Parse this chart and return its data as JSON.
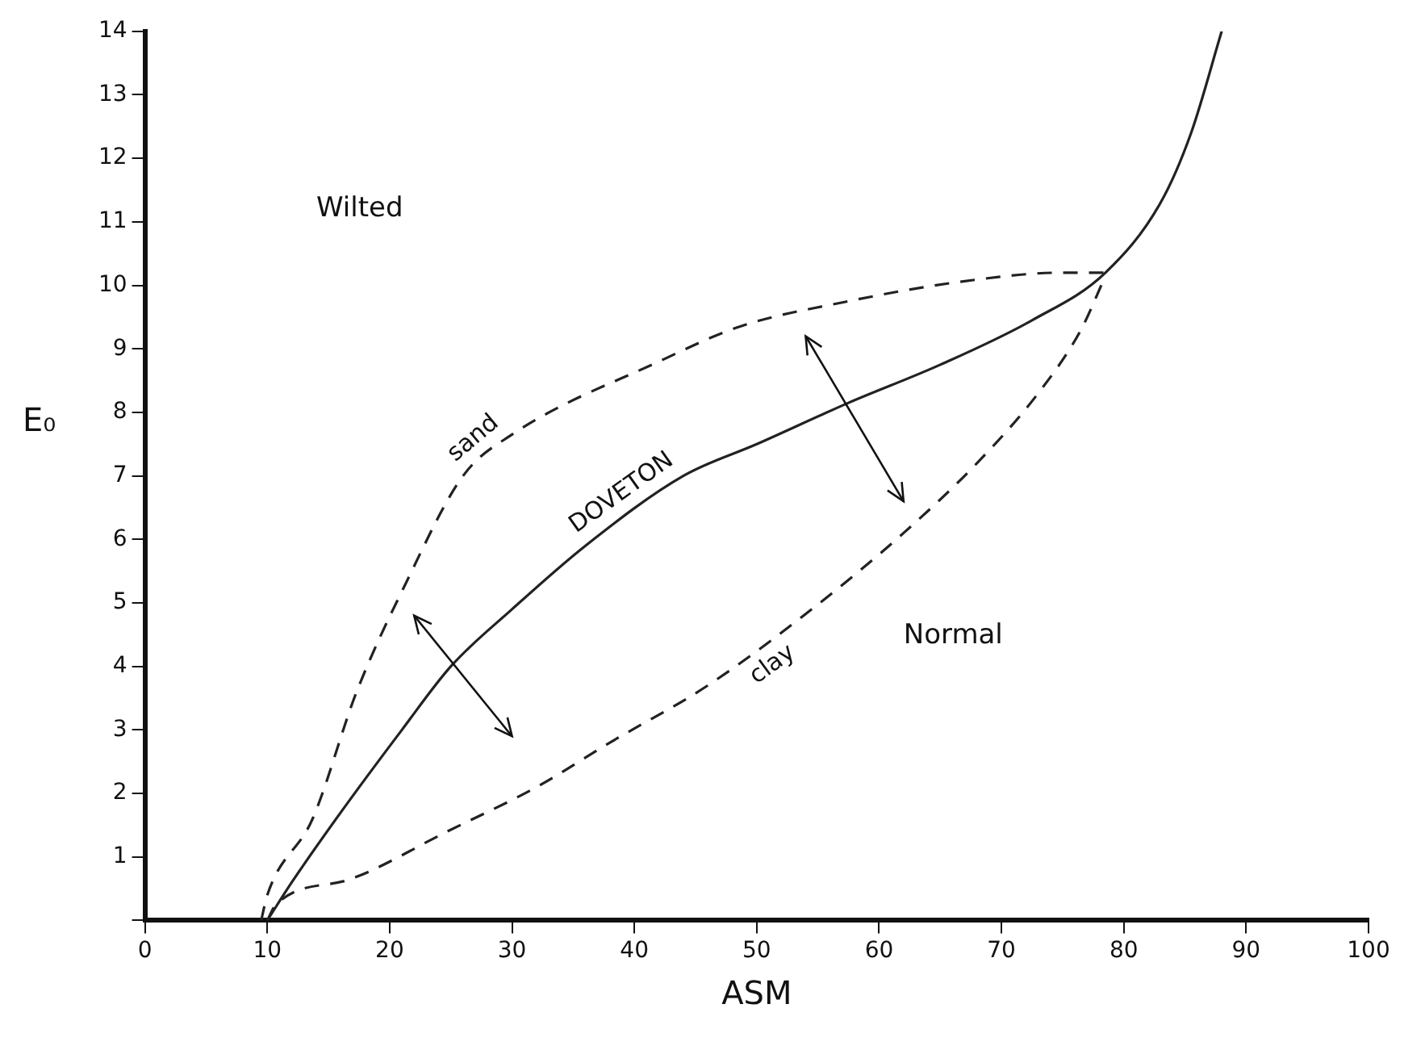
{
  "chart_data": {
    "type": "line",
    "xlabel": "ASM",
    "ylabel": "E₀",
    "xlim": [
      0,
      100
    ],
    "xticks": [
      0,
      10,
      20,
      30,
      40,
      50,
      60,
      70,
      80,
      90,
      100
    ],
    "ylim": [
      0,
      14
    ],
    "yticks": [
      {
        "value": 0,
        "label": null
      },
      1,
      2,
      3,
      4,
      5,
      6,
      7,
      8,
      9,
      10,
      11,
      12,
      13,
      14
    ],
    "grid": false,
    "legend": false,
    "marker": "none",
    "annotations": [
      "Wilted",
      "Normal"
    ],
    "series": [
      {
        "name": "sand",
        "color": "#222222",
        "line_style": "dashed",
        "x": [
          9.5,
          10,
          13.7,
          17.3,
          21.3,
          26,
          30,
          42,
          48.6,
          57.5,
          66.4,
          75,
          78.5
        ],
        "values": [
          0,
          0.4,
          1.6,
          3.6,
          5.3,
          7,
          7.65,
          8.8,
          9.35,
          9.75,
          10.05,
          10.2,
          10.2
        ]
      },
      {
        "name": "DOVETON",
        "color": "#222222",
        "line_style": "solid",
        "x": [
          10,
          12,
          16,
          21,
          25,
          30,
          36,
          44,
          50,
          57.5,
          65,
          72.5,
          78.5,
          83,
          85.5,
          88
        ],
        "values": [
          0,
          0.6,
          1.7,
          3,
          4,
          4.9,
          5.9,
          7,
          7.5,
          8.15,
          8.75,
          9.45,
          10.2,
          11.3,
          12.4,
          14
        ]
      },
      {
        "name": "clay",
        "color": "#222222",
        "line_style": "dashed",
        "x": [
          10,
          10.7,
          16.8,
          24.7,
          32,
          38,
          46,
          54.5,
          62,
          68,
          73,
          76.5,
          78.5
        ],
        "values": [
          0,
          0.25,
          0.65,
          1.4,
          2.1,
          2.8,
          3.7,
          4.9,
          6.1,
          7.2,
          8.3,
          9.3,
          10.15
        ]
      }
    ]
  }
}
